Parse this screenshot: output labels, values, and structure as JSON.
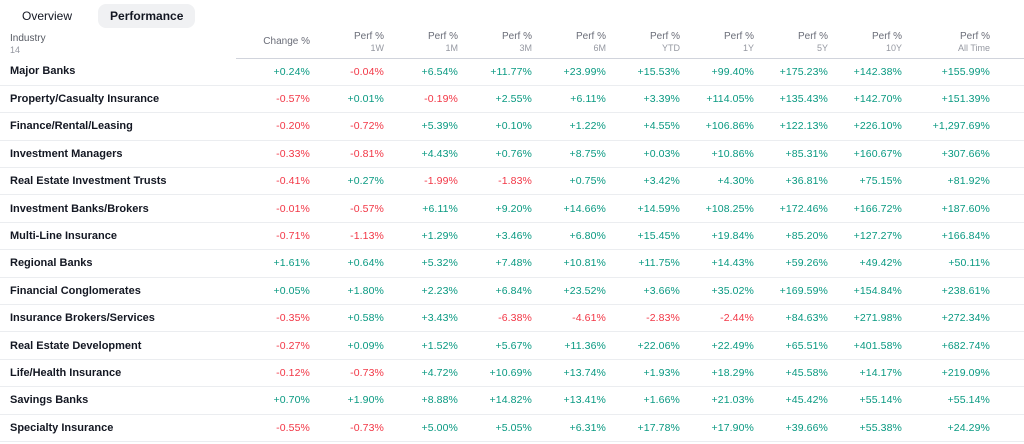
{
  "tabs": [
    {
      "label": "Overview",
      "active": false
    },
    {
      "label": "Performance",
      "active": true
    }
  ],
  "colors": {
    "positive": "#089981",
    "negative": "#f23645"
  },
  "table": {
    "industry_header": "Industry",
    "industry_count": "14",
    "columns": [
      {
        "top": "Change %",
        "sub": ""
      },
      {
        "top": "Perf %",
        "sub": "1W"
      },
      {
        "top": "Perf %",
        "sub": "1M"
      },
      {
        "top": "Perf %",
        "sub": "3M"
      },
      {
        "top": "Perf %",
        "sub": "6M"
      },
      {
        "top": "Perf %",
        "sub": "YTD"
      },
      {
        "top": "Perf %",
        "sub": "1Y"
      },
      {
        "top": "Perf %",
        "sub": "5Y"
      },
      {
        "top": "Perf %",
        "sub": "10Y"
      },
      {
        "top": "Perf %",
        "sub": "All Time"
      }
    ],
    "rows": [
      {
        "name": "Major Banks",
        "values": [
          "+0.24%",
          "-0.04%",
          "+6.54%",
          "+11.77%",
          "+23.99%",
          "+15.53%",
          "+99.40%",
          "+175.23%",
          "+142.38%",
          "+155.99%"
        ]
      },
      {
        "name": "Property/Casualty Insurance",
        "values": [
          "-0.57%",
          "+0.01%",
          "-0.19%",
          "+2.55%",
          "+6.11%",
          "+3.39%",
          "+114.05%",
          "+135.43%",
          "+142.70%",
          "+151.39%"
        ]
      },
      {
        "name": "Finance/Rental/Leasing",
        "values": [
          "-0.20%",
          "-0.72%",
          "+5.39%",
          "+0.10%",
          "+1.22%",
          "+4.55%",
          "+106.86%",
          "+122.13%",
          "+226.10%",
          "+1,297.69%"
        ]
      },
      {
        "name": "Investment Managers",
        "values": [
          "-0.33%",
          "-0.81%",
          "+4.43%",
          "+0.76%",
          "+8.75%",
          "+0.03%",
          "+10.86%",
          "+85.31%",
          "+160.67%",
          "+307.66%"
        ]
      },
      {
        "name": "Real Estate Investment Trusts",
        "values": [
          "-0.41%",
          "+0.27%",
          "-1.99%",
          "-1.83%",
          "+0.75%",
          "+3.42%",
          "+4.30%",
          "+36.81%",
          "+75.15%",
          "+81.92%"
        ]
      },
      {
        "name": "Investment Banks/Brokers",
        "values": [
          "-0.01%",
          "-0.57%",
          "+6.11%",
          "+9.20%",
          "+14.66%",
          "+14.59%",
          "+108.25%",
          "+172.46%",
          "+166.72%",
          "+187.60%"
        ]
      },
      {
        "name": "Multi-Line Insurance",
        "values": [
          "-0.71%",
          "-1.13%",
          "+1.29%",
          "+3.46%",
          "+6.80%",
          "+15.45%",
          "+19.84%",
          "+85.20%",
          "+127.27%",
          "+166.84%"
        ]
      },
      {
        "name": "Regional Banks",
        "values": [
          "+1.61%",
          "+0.64%",
          "+5.32%",
          "+7.48%",
          "+10.81%",
          "+11.75%",
          "+14.43%",
          "+59.26%",
          "+49.42%",
          "+50.11%"
        ]
      },
      {
        "name": "Financial Conglomerates",
        "values": [
          "+0.05%",
          "+1.80%",
          "+2.23%",
          "+6.84%",
          "+23.52%",
          "+3.66%",
          "+35.02%",
          "+169.59%",
          "+154.84%",
          "+238.61%"
        ]
      },
      {
        "name": "Insurance Brokers/Services",
        "values": [
          "-0.35%",
          "+0.58%",
          "+3.43%",
          "-6.38%",
          "-4.61%",
          "-2.83%",
          "-2.44%",
          "+84.63%",
          "+271.98%",
          "+272.34%"
        ]
      },
      {
        "name": "Real Estate Development",
        "values": [
          "-0.27%",
          "+0.09%",
          "+1.52%",
          "+5.67%",
          "+11.36%",
          "+22.06%",
          "+22.49%",
          "+65.51%",
          "+401.58%",
          "+682.74%"
        ]
      },
      {
        "name": "Life/Health Insurance",
        "values": [
          "-0.12%",
          "-0.73%",
          "+4.72%",
          "+10.69%",
          "+13.74%",
          "+1.93%",
          "+18.29%",
          "+45.58%",
          "+14.17%",
          "+219.09%"
        ]
      },
      {
        "name": "Savings Banks",
        "values": [
          "+0.70%",
          "+1.90%",
          "+8.88%",
          "+14.82%",
          "+13.41%",
          "+1.66%",
          "+21.03%",
          "+45.42%",
          "+55.14%",
          "+55.14%"
        ]
      },
      {
        "name": "Specialty Insurance",
        "values": [
          "-0.55%",
          "-0.73%",
          "+5.00%",
          "+5.05%",
          "+6.31%",
          "+17.78%",
          "+17.90%",
          "+39.66%",
          "+55.38%",
          "+24.29%"
        ]
      }
    ]
  }
}
